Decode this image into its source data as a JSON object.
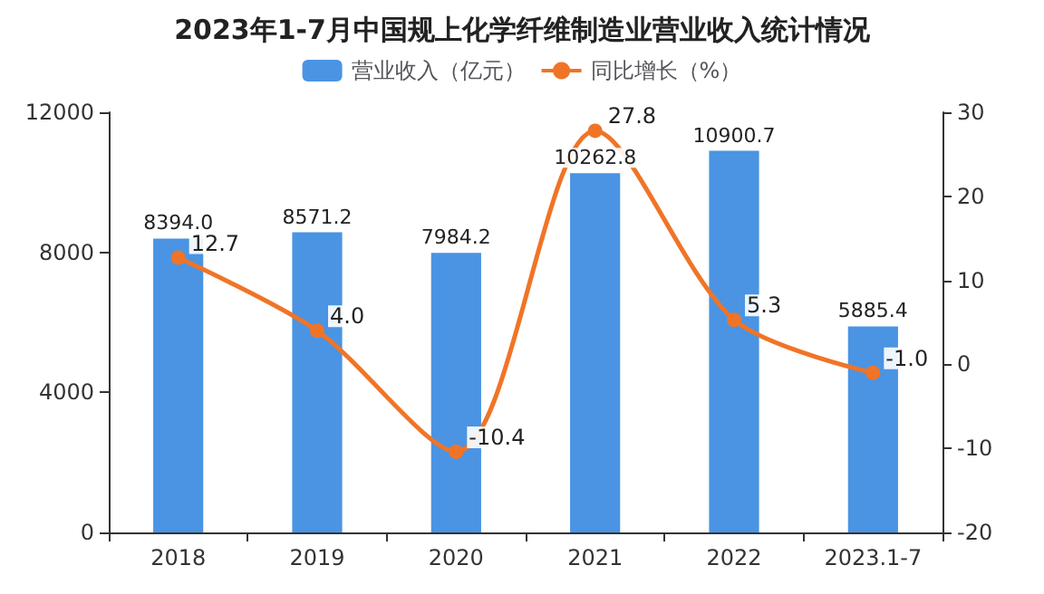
{
  "chart_data": {
    "type": "bar",
    "title": "2023年1-7月中国规上化学纤维制造业营业收入统计情况",
    "categories": [
      "2018",
      "2019",
      "2020",
      "2021",
      "2022",
      "2023.1-7"
    ],
    "series": [
      {
        "name": "营业收入（亿元）",
        "color": "#4a94e3",
        "values": [
          8394.0,
          8571.2,
          7984.2,
          10262.8,
          10900.7,
          5885.4
        ],
        "value_labels": [
          "8394.0",
          "8571.2",
          "7984.2",
          "10262.8",
          "10900.7",
          "5885.4"
        ]
      },
      {
        "name": "同比增长（%）",
        "type": "line",
        "axis": "y2",
        "color": "#f07427",
        "values": [
          12.7,
          4.0,
          -10.4,
          27.8,
          5.3,
          -1.0
        ],
        "value_labels": [
          "12.7",
          "4.0",
          "-10.4",
          "27.8",
          "5.3",
          "-1.0"
        ]
      }
    ],
    "ylim": [
      0,
      12000
    ],
    "yticks": [
      0,
      4000,
      8000,
      12000
    ],
    "y2lim": [
      -20,
      30
    ],
    "y2ticks": [
      -20,
      -10,
      0,
      10,
      20,
      30
    ],
    "legend": "top",
    "marker": "circle",
    "line_style": "solid",
    "grid": false
  }
}
